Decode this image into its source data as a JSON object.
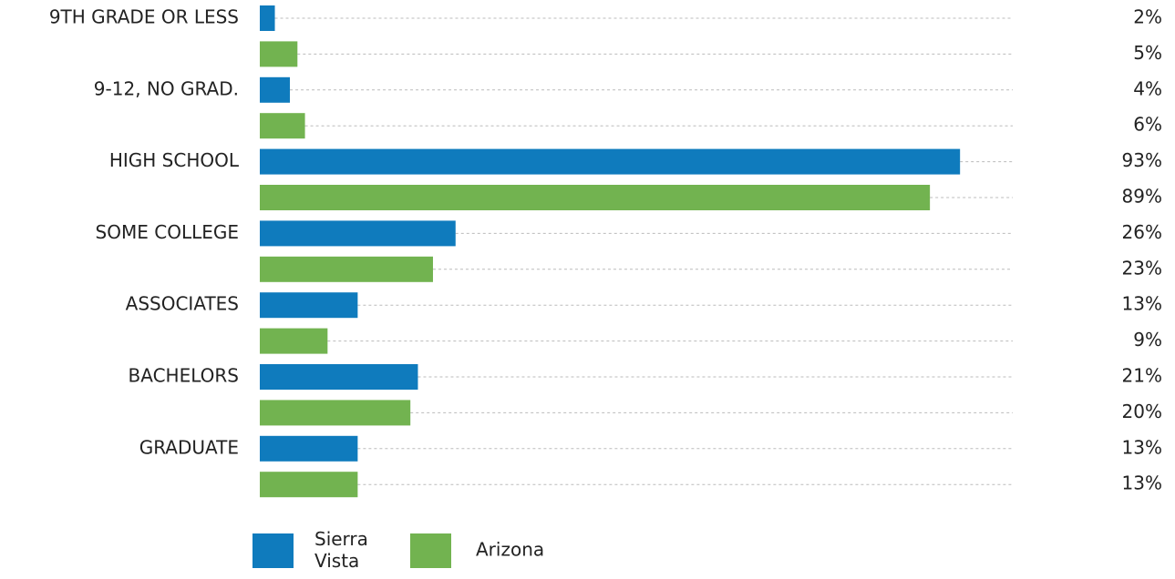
{
  "chart_data": {
    "type": "barh",
    "categories": [
      "9TH GRADE OR LESS",
      "9-12, NO GRAD.",
      "HIGH SCHOOL",
      "SOME COLLEGE",
      "ASSOCIATES",
      "BACHELORS",
      "GRADUATE"
    ],
    "series": [
      {
        "name": "Sierra Vista",
        "color": "#0f7bbd",
        "values": [
          2,
          4,
          93,
          26,
          13,
          21,
          13
        ],
        "value_labels": [
          "2%",
          "4%",
          "93%",
          "26%",
          "13%",
          "21%",
          "13%"
        ]
      },
      {
        "name": "Arizona",
        "color": "#72b350",
        "values": [
          5,
          6,
          89,
          23,
          9,
          20,
          13
        ],
        "value_labels": [
          "5%",
          "6%",
          "89%",
          "23%",
          "9%",
          "20%",
          "13%"
        ]
      }
    ],
    "xlim": [
      0,
      100
    ]
  }
}
